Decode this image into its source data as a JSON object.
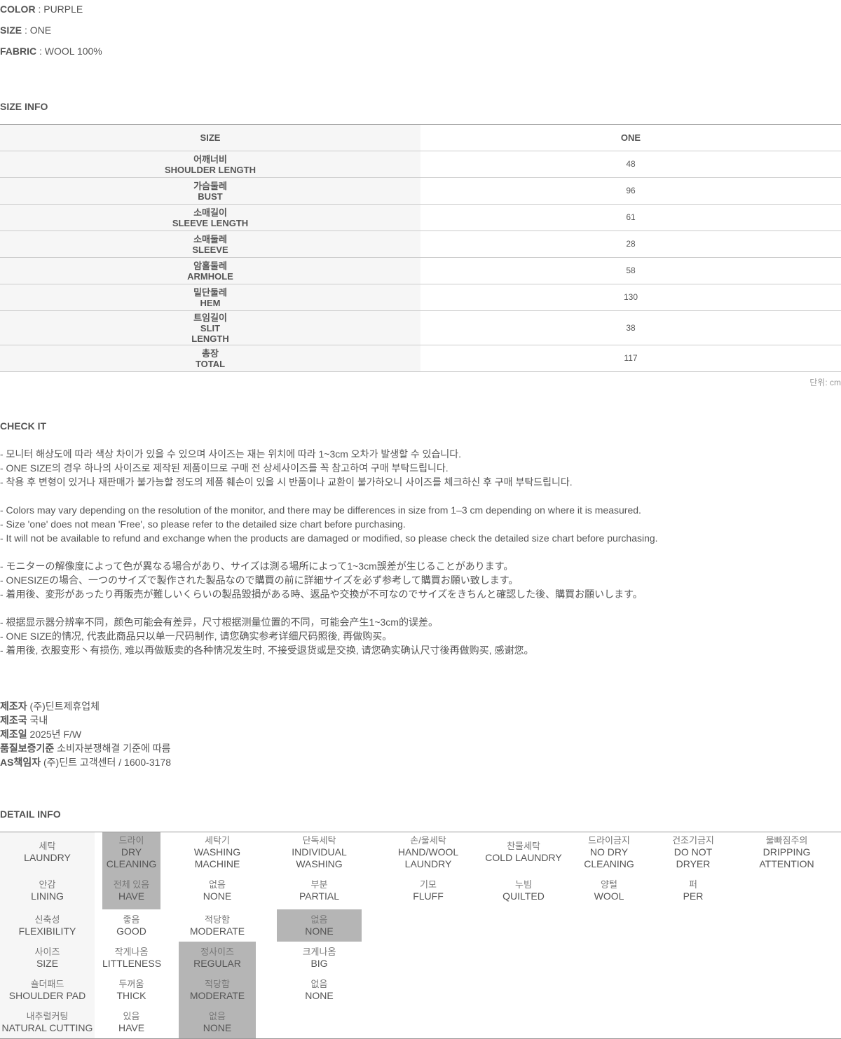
{
  "specs": [
    {
      "label": "COLOR",
      "value": ": PURPLE"
    },
    {
      "label": "SIZE",
      "value": ": ONE"
    },
    {
      "label": "FABRIC",
      "value": ": WOOL 100%"
    }
  ],
  "size_info": {
    "title": "SIZE INFO",
    "header": [
      "SIZE",
      "ONE"
    ],
    "rows": [
      {
        "ko": "어깨너비",
        "en": "SHOULDER LENGTH",
        "value": 48
      },
      {
        "ko": "가슴둘레",
        "en": "BUST",
        "value": 96
      },
      {
        "ko": "소매길이",
        "en": "SLEEVE LENGTH",
        "value": 61
      },
      {
        "ko": "소매둘레",
        "en": "SLEEVE",
        "value": 28
      },
      {
        "ko": "암홀둘레",
        "en": "ARMHOLE",
        "value": 58
      },
      {
        "ko": "밑단둘레",
        "en": "HEM",
        "value": 130
      },
      {
        "ko": "트임길이",
        "en": "SLIT LENGTH",
        "value": 38
      },
      {
        "ko": "총장",
        "en": "TOTAL",
        "value": 117
      }
    ],
    "unit": "단위: cm"
  },
  "check_it": {
    "title": "CHECK IT",
    "groups": [
      [
        "- 모니터 해상도에 따라 색상 차이가 있을 수 있으며 사이즈는 재는 위치에 따라 1~3cm 오차가 발생할 수 있습니다.",
        "- ONE SIZE의 경우 하나의 사이즈로 제작된 제품이므로 구매 전 상세사이즈를 꼭 참고하여 구매 부탁드립니다.",
        "- 착용 후 변형이 있거나 재판매가 불가능할 정도의 제품 훼손이 있을 시 반품이나 교환이 불가하오니 사이즈를 체크하신 후 구매 부탁드립니다."
      ],
      [
        "- Colors may vary depending on the resolution of the monitor, and there may be differences in size from 1–3 cm depending on where it is measured.",
        "- Size 'one' does not mean 'Free', so please refer to the detailed size chart before purchasing.",
        "- It will not be available to refund and exchange when the products are damaged or modified, so please check the detailed size chart before purchasing."
      ],
      [
        "- モニターの解像度によって色が異なる場合があり、サイズは測る場所によって1~3cm誤差が生じることがあります。",
        "- ONESIZEの場合、一つのサイズで製作された製品なので購買の前に詳細サイズを必ず参考して購買お願い致します。",
        "- 着用後、変形があったり再販売が難しいくらいの製品毀損がある時、返品や交換が不可なのでサイズをきちんと確認した後、購買お願いします。"
      ],
      [
        "- 根据显示器分辨率不同，颜色可能会有差异，尺寸根据测量位置的不同，可能会产生1~3cm的误差。",
        "- ONE SIZE的情况, 代表此商品只以单一尺码制作, 请您确实参考详细尺码照後, 再做购买。",
        "- 着用後, 衣服变形丶有损伤, 难以再做贩卖的各种情况发生时, 不接受退货或是交换, 请您确实确认尺寸後再做购买, 感谢您。"
      ]
    ]
  },
  "maker_info": [
    {
      "label": "제조자",
      "value": "(주)딘트제휴업체"
    },
    {
      "label": "제조국",
      "value": "국내"
    },
    {
      "label": "제조일",
      "value": "2025년 F/W"
    },
    {
      "label": "품질보증기준",
      "value": "소비자분쟁해결 기준에 따름"
    },
    {
      "label": "AS책임자",
      "value": "(주)딘트 고객센터 / 1600-3178"
    }
  ],
  "detail_info": {
    "title": "DETAIL INFO",
    "rows": [
      [
        {
          "ko": "세탁",
          "en": "LAUNDRY"
        },
        {
          "ko": "드라이",
          "en": "DRY CLEANING",
          "selected": true
        },
        {
          "ko": "세탁기",
          "en": "WASHING MACHINE"
        },
        {
          "ko": "단독세탁",
          "en": "INDIVIDUAL WASHING"
        },
        {
          "ko": "손/울세탁",
          "en": "HAND/WOOL LAUNDRY"
        },
        {
          "ko": "찬물세탁",
          "en": "COLD LAUNDRY"
        },
        {
          "ko": "드라이금지",
          "en": "NO DRY CLEANING"
        },
        {
          "ko": "건조기금지",
          "en": "DO NOT DRYER"
        },
        {
          "ko": "물빠짐주의",
          "en": "DRIPPING ATTENTION"
        }
      ],
      [
        {
          "ko": "안감",
          "en": "LINING"
        },
        {
          "ko": "전체 있음",
          "en": "HAVE",
          "selected": true
        },
        {
          "ko": "없음",
          "en": "NONE"
        },
        {
          "ko": "부분",
          "en": "PARTIAL"
        },
        {
          "ko": "기모",
          "en": "FLUFF"
        },
        {
          "ko": "누빔",
          "en": "QUILTED"
        },
        {
          "ko": "양털",
          "en": "WOOL"
        },
        {
          "ko": "퍼",
          "en": "PER"
        }
      ],
      [
        {
          "ko": "신축성",
          "en": "FLEXIBILITY"
        },
        {
          "ko": "좋음",
          "en": "GOOD"
        },
        {
          "ko": "적당함",
          "en": "MODERATE"
        },
        {
          "ko": "없음",
          "en": "NONE",
          "selected": true
        }
      ],
      [
        {
          "ko": "사이즈",
          "en": "SIZE"
        },
        {
          "ko": "작게나옴",
          "en": "LITTLENESS"
        },
        {
          "ko": "정사이즈",
          "en": "REGULAR",
          "selected": true
        },
        {
          "ko": "크게나옴",
          "en": "BIG"
        }
      ],
      [
        {
          "ko": "숄더패드",
          "en": "SHOULDER PAD"
        },
        {
          "ko": "두꺼움",
          "en": "THICK"
        },
        {
          "ko": "적당함",
          "en": "MODERATE",
          "selected": true
        },
        {
          "ko": "없음",
          "en": "NONE"
        }
      ],
      [
        {
          "ko": "내추럴커팅",
          "en": "NATURAL CUTTING"
        },
        {
          "ko": "있음",
          "en": "HAVE"
        },
        {
          "ko": "없음",
          "en": "NONE",
          "selected": true
        }
      ]
    ]
  }
}
